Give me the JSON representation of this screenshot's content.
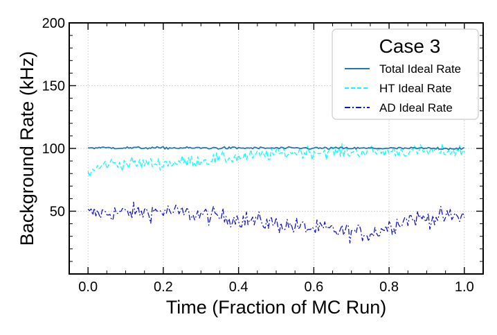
{
  "chart_data": {
    "type": "line",
    "title": "",
    "xlabel": "Time (Fraction of MC Run)",
    "ylabel": "Background Rate (kHz)",
    "xlim": [
      -0.05,
      1.05
    ],
    "ylim": [
      0,
      200
    ],
    "xticks": [
      0.0,
      0.2,
      0.4,
      0.6,
      0.8,
      1.0
    ],
    "xtick_labels": [
      "0.0",
      "0.2",
      "0.4",
      "0.6",
      "0.8",
      "1.0"
    ],
    "yticks": [
      50,
      100,
      150,
      200
    ],
    "ytick_labels": [
      "50",
      "100",
      "150",
      "200"
    ],
    "grid": true,
    "legend": {
      "title": "Case 3",
      "position": "top-right"
    },
    "series": [
      {
        "name": "Total Ideal Rate",
        "color": "#1f77b4",
        "style": "solid",
        "noise": 0.9,
        "base": [
          [
            0,
            100.5
          ],
          [
            1,
            100
          ]
        ]
      },
      {
        "name": "HT Ideal Rate",
        "color": "#00ffff",
        "style": "dashed",
        "noise": 5,
        "base": [
          [
            0,
            80
          ],
          [
            0.05,
            88
          ],
          [
            0.2,
            88
          ],
          [
            0.4,
            93
          ],
          [
            0.55,
            97
          ],
          [
            1,
            98
          ]
        ]
      },
      {
        "name": "AD Ideal Rate",
        "color": "#1212c8",
        "style": "dashdot",
        "noise": 7,
        "base": [
          [
            0,
            48
          ],
          [
            0.2,
            50
          ],
          [
            0.4,
            44
          ],
          [
            0.6,
            36
          ],
          [
            0.75,
            32
          ],
          [
            0.85,
            44
          ],
          [
            1,
            46
          ]
        ]
      }
    ]
  }
}
